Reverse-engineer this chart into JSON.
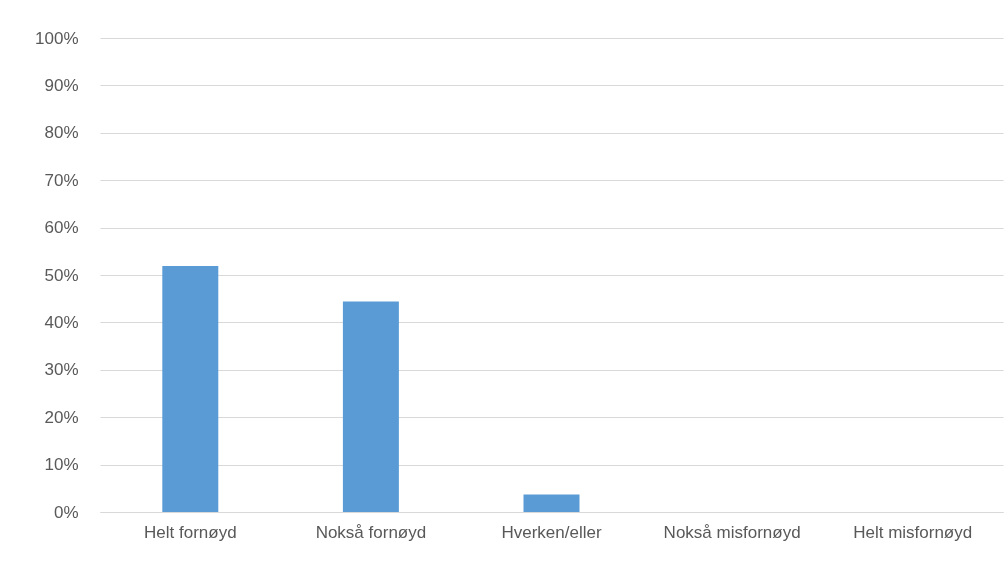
{
  "chart_data": {
    "type": "bar",
    "categories": [
      "Helt fornøyd",
      "Nokså fornøyd",
      "Hverken/eller",
      "Nokså misfornøyd",
      "Helt misfornøyd"
    ],
    "values": [
      51.9,
      44.4,
      3.7,
      0,
      0
    ],
    "color": "#5b9bd5",
    "ylim": [
      0,
      100
    ],
    "yticks": [
      {
        "value": 0,
        "label": "0%"
      },
      {
        "value": 10,
        "label": "10%"
      },
      {
        "value": 20,
        "label": "20%"
      },
      {
        "value": 30,
        "label": "30%"
      },
      {
        "value": 40,
        "label": "40%"
      },
      {
        "value": 50,
        "label": "50%"
      },
      {
        "value": 60,
        "label": "60%"
      },
      {
        "value": 70,
        "label": "70%"
      },
      {
        "value": 80,
        "label": "80%"
      },
      {
        "value": 90,
        "label": "90%"
      },
      {
        "value": 100,
        "label": "100%"
      }
    ],
    "grid": "y"
  }
}
